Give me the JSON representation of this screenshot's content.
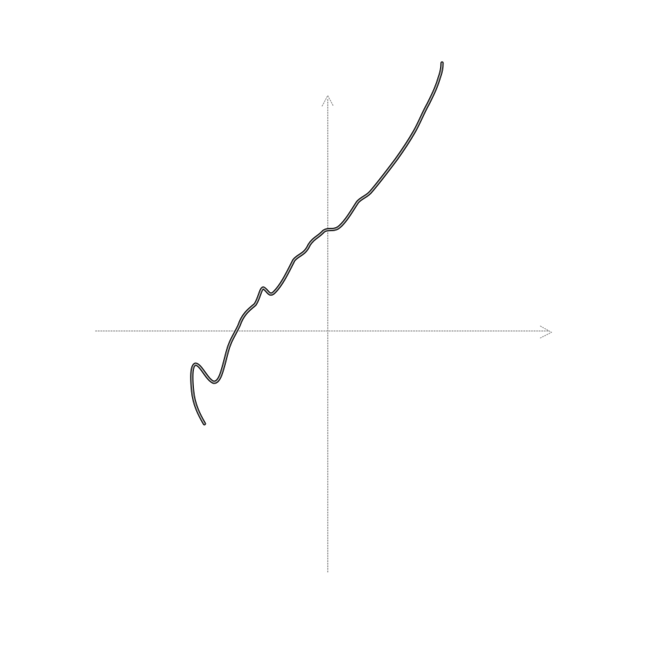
{
  "figure": {
    "type": "function-sketch",
    "axes": {
      "x_arrow": true,
      "y_arrow": true,
      "style": "dotted",
      "color": "#9a9a9a"
    },
    "curve": {
      "style": "hand-drawn",
      "color": "#2b2b2b",
      "highlight_color": "#cfcfcf"
    }
  }
}
